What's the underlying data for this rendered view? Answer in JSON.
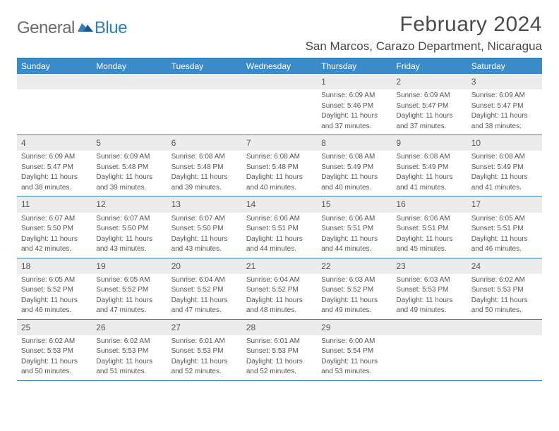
{
  "brand": {
    "word1": "General",
    "word2": "Blue"
  },
  "title": "February 2024",
  "location": "San Marcos, Carazo Department, Nicaragua",
  "day_names": [
    "Sunday",
    "Monday",
    "Tuesday",
    "Wednesday",
    "Thursday",
    "Friday",
    "Saturday"
  ],
  "colors": {
    "accent": "#2d7fbd",
    "header_bg": "#3b8bc9",
    "day_num_bg": "#ececec",
    "text": "#555555",
    "title": "#4a4a4a"
  },
  "weeks": [
    [
      null,
      null,
      null,
      null,
      {
        "n": "1",
        "sr": "Sunrise: 6:09 AM",
        "ss": "Sunset: 5:46 PM",
        "d1": "Daylight: 11 hours",
        "d2": "and 37 minutes."
      },
      {
        "n": "2",
        "sr": "Sunrise: 6:09 AM",
        "ss": "Sunset: 5:47 PM",
        "d1": "Daylight: 11 hours",
        "d2": "and 37 minutes."
      },
      {
        "n": "3",
        "sr": "Sunrise: 6:09 AM",
        "ss": "Sunset: 5:47 PM",
        "d1": "Daylight: 11 hours",
        "d2": "and 38 minutes."
      }
    ],
    [
      {
        "n": "4",
        "sr": "Sunrise: 6:09 AM",
        "ss": "Sunset: 5:47 PM",
        "d1": "Daylight: 11 hours",
        "d2": "and 38 minutes."
      },
      {
        "n": "5",
        "sr": "Sunrise: 6:09 AM",
        "ss": "Sunset: 5:48 PM",
        "d1": "Daylight: 11 hours",
        "d2": "and 39 minutes."
      },
      {
        "n": "6",
        "sr": "Sunrise: 6:08 AM",
        "ss": "Sunset: 5:48 PM",
        "d1": "Daylight: 11 hours",
        "d2": "and 39 minutes."
      },
      {
        "n": "7",
        "sr": "Sunrise: 6:08 AM",
        "ss": "Sunset: 5:48 PM",
        "d1": "Daylight: 11 hours",
        "d2": "and 40 minutes."
      },
      {
        "n": "8",
        "sr": "Sunrise: 6:08 AM",
        "ss": "Sunset: 5:49 PM",
        "d1": "Daylight: 11 hours",
        "d2": "and 40 minutes."
      },
      {
        "n": "9",
        "sr": "Sunrise: 6:08 AM",
        "ss": "Sunset: 5:49 PM",
        "d1": "Daylight: 11 hours",
        "d2": "and 41 minutes."
      },
      {
        "n": "10",
        "sr": "Sunrise: 6:08 AM",
        "ss": "Sunset: 5:49 PM",
        "d1": "Daylight: 11 hours",
        "d2": "and 41 minutes."
      }
    ],
    [
      {
        "n": "11",
        "sr": "Sunrise: 6:07 AM",
        "ss": "Sunset: 5:50 PM",
        "d1": "Daylight: 11 hours",
        "d2": "and 42 minutes."
      },
      {
        "n": "12",
        "sr": "Sunrise: 6:07 AM",
        "ss": "Sunset: 5:50 PM",
        "d1": "Daylight: 11 hours",
        "d2": "and 43 minutes."
      },
      {
        "n": "13",
        "sr": "Sunrise: 6:07 AM",
        "ss": "Sunset: 5:50 PM",
        "d1": "Daylight: 11 hours",
        "d2": "and 43 minutes."
      },
      {
        "n": "14",
        "sr": "Sunrise: 6:06 AM",
        "ss": "Sunset: 5:51 PM",
        "d1": "Daylight: 11 hours",
        "d2": "and 44 minutes."
      },
      {
        "n": "15",
        "sr": "Sunrise: 6:06 AM",
        "ss": "Sunset: 5:51 PM",
        "d1": "Daylight: 11 hours",
        "d2": "and 44 minutes."
      },
      {
        "n": "16",
        "sr": "Sunrise: 6:06 AM",
        "ss": "Sunset: 5:51 PM",
        "d1": "Daylight: 11 hours",
        "d2": "and 45 minutes."
      },
      {
        "n": "17",
        "sr": "Sunrise: 6:05 AM",
        "ss": "Sunset: 5:51 PM",
        "d1": "Daylight: 11 hours",
        "d2": "and 46 minutes."
      }
    ],
    [
      {
        "n": "18",
        "sr": "Sunrise: 6:05 AM",
        "ss": "Sunset: 5:52 PM",
        "d1": "Daylight: 11 hours",
        "d2": "and 46 minutes."
      },
      {
        "n": "19",
        "sr": "Sunrise: 6:05 AM",
        "ss": "Sunset: 5:52 PM",
        "d1": "Daylight: 11 hours",
        "d2": "and 47 minutes."
      },
      {
        "n": "20",
        "sr": "Sunrise: 6:04 AM",
        "ss": "Sunset: 5:52 PM",
        "d1": "Daylight: 11 hours",
        "d2": "and 47 minutes."
      },
      {
        "n": "21",
        "sr": "Sunrise: 6:04 AM",
        "ss": "Sunset: 5:52 PM",
        "d1": "Daylight: 11 hours",
        "d2": "and 48 minutes."
      },
      {
        "n": "22",
        "sr": "Sunrise: 6:03 AM",
        "ss": "Sunset: 5:52 PM",
        "d1": "Daylight: 11 hours",
        "d2": "and 49 minutes."
      },
      {
        "n": "23",
        "sr": "Sunrise: 6:03 AM",
        "ss": "Sunset: 5:53 PM",
        "d1": "Daylight: 11 hours",
        "d2": "and 49 minutes."
      },
      {
        "n": "24",
        "sr": "Sunrise: 6:02 AM",
        "ss": "Sunset: 5:53 PM",
        "d1": "Daylight: 11 hours",
        "d2": "and 50 minutes."
      }
    ],
    [
      {
        "n": "25",
        "sr": "Sunrise: 6:02 AM",
        "ss": "Sunset: 5:53 PM",
        "d1": "Daylight: 11 hours",
        "d2": "and 50 minutes."
      },
      {
        "n": "26",
        "sr": "Sunrise: 6:02 AM",
        "ss": "Sunset: 5:53 PM",
        "d1": "Daylight: 11 hours",
        "d2": "and 51 minutes."
      },
      {
        "n": "27",
        "sr": "Sunrise: 6:01 AM",
        "ss": "Sunset: 5:53 PM",
        "d1": "Daylight: 11 hours",
        "d2": "and 52 minutes."
      },
      {
        "n": "28",
        "sr": "Sunrise: 6:01 AM",
        "ss": "Sunset: 5:53 PM",
        "d1": "Daylight: 11 hours",
        "d2": "and 52 minutes."
      },
      {
        "n": "29",
        "sr": "Sunrise: 6:00 AM",
        "ss": "Sunset: 5:54 PM",
        "d1": "Daylight: 11 hours",
        "d2": "and 53 minutes."
      },
      null,
      null
    ]
  ]
}
